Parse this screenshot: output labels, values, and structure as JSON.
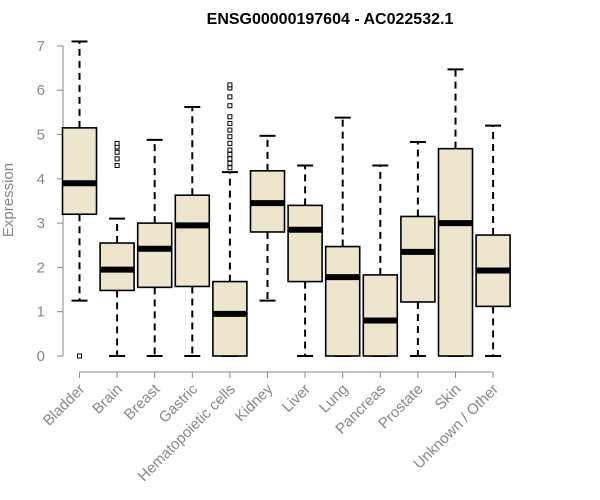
{
  "chart_data": {
    "type": "boxplot",
    "title": "ENSG00000197604 - AC022532.1",
    "ylabel": "Expression",
    "xlabel": "",
    "ylim": [
      0,
      7
    ],
    "yticks": [
      0,
      1,
      2,
      3,
      4,
      5,
      6,
      7
    ],
    "categories": [
      "Bladder",
      "Brain",
      "Breast",
      "Gastric",
      "Hematopoietic cells",
      "Kidney",
      "Liver",
      "Lung",
      "Pancreas",
      "Prostate",
      "Skin",
      "Unknown / Other"
    ],
    "boxes": [
      {
        "min": 1.25,
        "q1": 3.2,
        "median": 3.9,
        "q3": 5.15,
        "max": 7.1,
        "outliers": [
          0.0
        ]
      },
      {
        "min": 0.0,
        "q1": 1.48,
        "median": 1.95,
        "q3": 2.55,
        "max": 3.1,
        "outliers": [
          4.3,
          4.45,
          4.6,
          4.72,
          4.8
        ]
      },
      {
        "min": 0.0,
        "q1": 1.55,
        "median": 2.42,
        "q3": 3.0,
        "max": 4.88,
        "outliers": []
      },
      {
        "min": 0.0,
        "q1": 1.57,
        "median": 2.95,
        "q3": 3.63,
        "max": 5.62,
        "outliers": []
      },
      {
        "min": 0.0,
        "q1": 0.0,
        "median": 0.95,
        "q3": 1.68,
        "max": 4.15,
        "outliers": [
          4.25,
          4.35,
          4.45,
          4.55,
          4.65,
          4.8,
          4.95,
          5.1,
          5.25,
          5.4,
          5.65,
          5.85,
          6.05,
          6.12
        ]
      },
      {
        "min": 1.25,
        "q1": 2.8,
        "median": 3.45,
        "q3": 4.18,
        "max": 4.97,
        "outliers": []
      },
      {
        "min": 0.0,
        "q1": 1.68,
        "median": 2.85,
        "q3": 3.4,
        "max": 4.3,
        "outliers": []
      },
      {
        "min": 0.0,
        "q1": 0.0,
        "median": 1.78,
        "q3": 2.47,
        "max": 5.38,
        "outliers": []
      },
      {
        "min": 0.0,
        "q1": 0.0,
        "median": 0.8,
        "q3": 1.83,
        "max": 4.3,
        "outliers": []
      },
      {
        "min": 0.0,
        "q1": 1.22,
        "median": 2.35,
        "q3": 3.15,
        "max": 4.83,
        "outliers": []
      },
      {
        "min": 0.0,
        "q1": 0.0,
        "median": 3.0,
        "q3": 4.68,
        "max": 6.47,
        "outliers": []
      },
      {
        "min": 0.0,
        "q1": 1.12,
        "median": 1.93,
        "q3": 2.73,
        "max": 5.2,
        "outliers": []
      }
    ],
    "box_fill": "#ede6cf",
    "box_stroke": "#000000",
    "axis_color": "#888888",
    "grid": false,
    "legend": "none"
  }
}
